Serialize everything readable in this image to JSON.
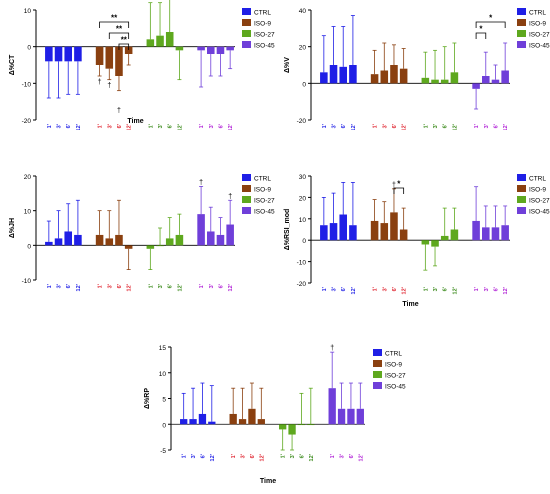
{
  "colors": {
    "CTRL": "#1f1fe6",
    "ISO-9": "#8a4010",
    "ISO-27": "#5ea81e",
    "ISO-45": "#6f3fd9",
    "ISO-9-axis": "#e0242f",
    "ISO-45-axis": "#b01fd6"
  },
  "chart_data": [
    {
      "id": "A",
      "type": "bar",
      "ylabel": "Δ%CT",
      "xlabel": "Time",
      "ylim": [
        -20,
        10
      ],
      "yticks": [
        -20,
        -10,
        0,
        10
      ],
      "categories": [
        "1'",
        "3'",
        "6'",
        "12'"
      ],
      "legend": [
        "CTRL",
        "ISO-9",
        "ISO-27",
        "ISO-45"
      ],
      "legend_position": "right",
      "series": [
        {
          "name": "CTRL",
          "values": [
            -4,
            -4,
            -4,
            -4
          ],
          "errors": [
            10,
            10,
            9,
            9
          ]
        },
        {
          "name": "ISO-9",
          "values": [
            -5,
            -6,
            -8,
            -2
          ],
          "errors": [
            3,
            3,
            4,
            3
          ]
        },
        {
          "name": "ISO-27",
          "values": [
            2,
            3,
            4,
            -1
          ],
          "errors": [
            10,
            9,
            13,
            8
          ]
        },
        {
          "name": "ISO-45",
          "values": [
            -1,
            -2,
            -2,
            -1
          ],
          "errors": [
            10,
            6,
            6,
            5
          ]
        }
      ],
      "annotations": [
        "**",
        "**",
        "**",
        "†",
        "†",
        "†"
      ]
    },
    {
      "id": "B",
      "type": "bar",
      "ylabel": "Δ%V",
      "xlabel": "",
      "ylim": [
        -20,
        40
      ],
      "yticks": [
        -20,
        0,
        20,
        40
      ],
      "categories": [
        "1'",
        "3'",
        "6'",
        "12'"
      ],
      "legend": [
        "CTRL",
        "ISO-9",
        "ISO-27",
        "ISO-45"
      ],
      "legend_position": "right",
      "series": [
        {
          "name": "CTRL",
          "values": [
            6,
            10,
            9,
            10
          ],
          "errors": [
            20,
            21,
            22,
            27
          ]
        },
        {
          "name": "ISO-9",
          "values": [
            5,
            7,
            10,
            8
          ],
          "errors": [
            13,
            15,
            11,
            11
          ]
        },
        {
          "name": "ISO-27",
          "values": [
            3,
            2,
            2,
            6
          ],
          "errors": [
            14,
            16,
            18,
            16
          ]
        },
        {
          "name": "ISO-45",
          "values": [
            -3,
            4,
            2,
            7
          ],
          "errors": [
            11,
            13,
            8,
            15
          ]
        }
      ],
      "annotations": [
        "*",
        "*"
      ]
    },
    {
      "id": "C",
      "type": "bar",
      "ylabel": "Δ%JH",
      "xlabel": "",
      "ylim": [
        -10,
        20
      ],
      "yticks": [
        -10,
        0,
        10,
        20
      ],
      "categories": [
        "1'",
        "3'",
        "6'",
        "12'"
      ],
      "legend": [
        "CTRL",
        "ISO-9",
        "ISO-27",
        "ISO-45"
      ],
      "legend_position": "right",
      "series": [
        {
          "name": "CTRL",
          "values": [
            1,
            2,
            4,
            3
          ],
          "errors": [
            6,
            8,
            8,
            10
          ]
        },
        {
          "name": "ISO-9",
          "values": [
            3,
            2,
            3,
            -1
          ],
          "errors": [
            7,
            8,
            10,
            6
          ]
        },
        {
          "name": "ISO-27",
          "values": [
            -1,
            0,
            2,
            3
          ],
          "errors": [
            6,
            5,
            6,
            6
          ]
        },
        {
          "name": "ISO-45",
          "values": [
            9,
            4,
            3,
            6
          ],
          "errors": [
            8,
            7,
            5,
            7
          ]
        }
      ],
      "annotations": [
        "†",
        "†"
      ]
    },
    {
      "id": "D",
      "type": "bar",
      "ylabel": "Δ%RSI_mod",
      "xlabel": "Time",
      "ylim": [
        -20,
        30
      ],
      "yticks": [
        -20,
        -10,
        0,
        10,
        20,
        30
      ],
      "categories": [
        "1'",
        "3'",
        "6'",
        "12'"
      ],
      "legend": [
        "CTRL",
        "ISO-9",
        "ISO-27",
        "ISO-45"
      ],
      "legend_position": "right",
      "series": [
        {
          "name": "CTRL",
          "values": [
            7,
            8,
            12,
            7
          ],
          "errors": [
            13,
            14,
            15,
            20
          ]
        },
        {
          "name": "ISO-9",
          "values": [
            9,
            8,
            13,
            5
          ],
          "errors": [
            10,
            10,
            11,
            10
          ]
        },
        {
          "name": "ISO-27",
          "values": [
            -2,
            -3,
            2,
            5
          ],
          "errors": [
            12,
            9,
            13,
            10
          ]
        },
        {
          "name": "ISO-45",
          "values": [
            9,
            6,
            6,
            7
          ],
          "errors": [
            16,
            10,
            10,
            9
          ]
        }
      ],
      "annotations": [
        "*",
        "†"
      ]
    },
    {
      "id": "E",
      "type": "bar",
      "ylabel": "Δ%RP",
      "xlabel": "Time",
      "ylim": [
        -5,
        15
      ],
      "yticks": [
        -5,
        0,
        5,
        10,
        15
      ],
      "categories": [
        "1'",
        "3'",
        "6'",
        "12'"
      ],
      "legend": [
        "CTRL",
        "ISO-9",
        "ISO-27",
        "ISO-45"
      ],
      "legend_position": "right",
      "series": [
        {
          "name": "CTRL",
          "values": [
            1,
            1,
            2,
            0.5
          ],
          "errors": [
            5,
            6,
            6,
            7
          ]
        },
        {
          "name": "ISO-9",
          "values": [
            2,
            1,
            3,
            1
          ],
          "errors": [
            5,
            6,
            5,
            6
          ]
        },
        {
          "name": "ISO-27",
          "values": [
            -1,
            -2,
            0,
            0
          ],
          "errors": [
            4,
            3,
            6,
            7
          ]
        },
        {
          "name": "ISO-45",
          "values": [
            7,
            3,
            3,
            3
          ],
          "errors": [
            7,
            5,
            5,
            5
          ]
        }
      ],
      "annotations": [
        "†"
      ]
    }
  ]
}
